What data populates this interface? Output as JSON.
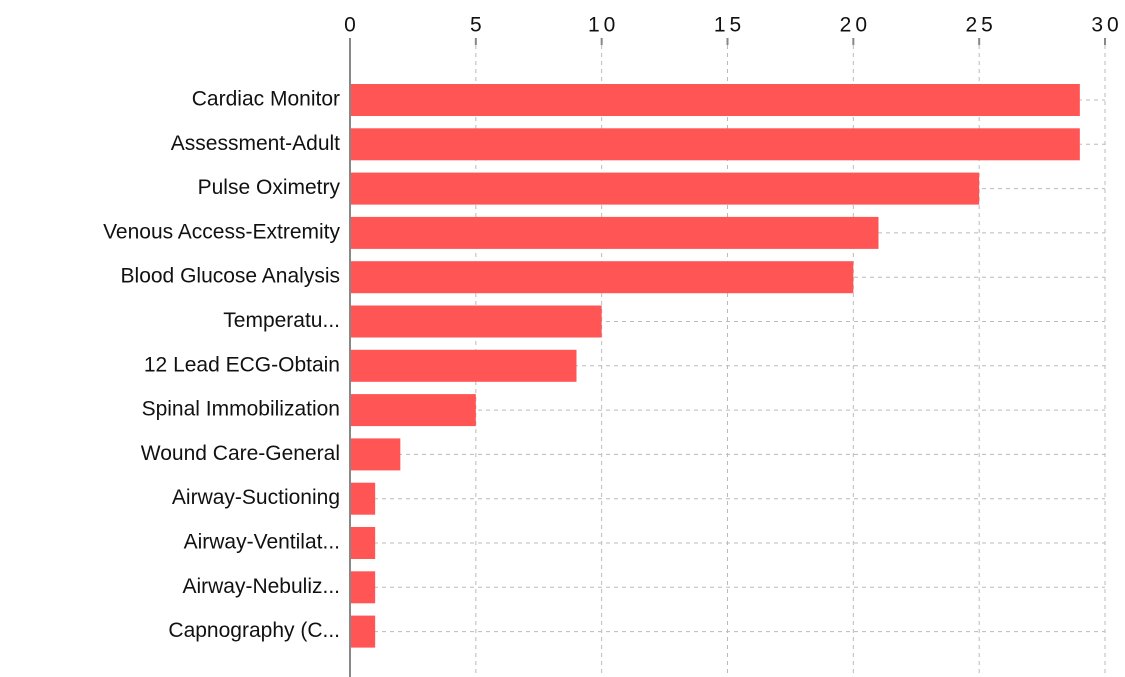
{
  "chart_data": {
    "type": "bar",
    "orientation": "horizontal",
    "categories": [
      "Cardiac Monitor",
      "Assessment-Adult",
      "Pulse Oximetry",
      "Venous Access-Extremity",
      "Blood Glucose Analysis",
      "Temperatu...",
      "12 Lead ECG-Obtain",
      "Spinal Immobilization",
      "Wound Care-General",
      "Airway-Suctioning",
      "Airway-Ventilat...",
      "Airway-Nebuliz...",
      "Capnography (C..."
    ],
    "values": [
      29,
      29,
      25,
      21,
      20,
      10,
      9,
      5,
      2,
      1,
      1,
      1,
      1
    ],
    "color": "#ff5555",
    "xlim": [
      0,
      30
    ],
    "xticks": [
      0,
      5,
      10,
      15,
      20,
      25,
      30
    ],
    "grid": true
  }
}
